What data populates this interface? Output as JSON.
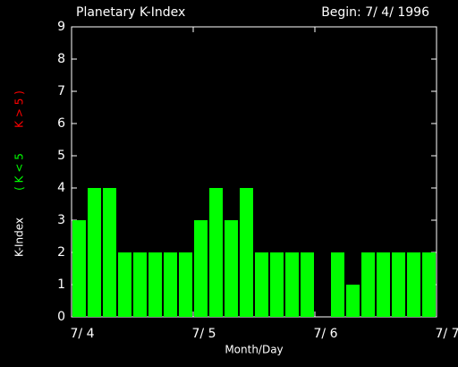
{
  "chart_data": {
    "type": "bar",
    "title": "Planetary K-Index",
    "subtitle": "Begin: 7/ 4/ 1996",
    "xlabel": "Month/Day",
    "ylabel": "K-Index",
    "legend": [
      {
        "label": "( K < 5",
        "color": "#00ff00"
      },
      {
        "label": "K > 5 )",
        "color": "#ff0000"
      }
    ],
    "categories": [
      null,
      null,
      null,
      null,
      null,
      null,
      null,
      null,
      null,
      null,
      null,
      null,
      null,
      null,
      null,
      null,
      null,
      null,
      null,
      null,
      null,
      null,
      null,
      null
    ],
    "values": [
      3,
      4,
      4,
      2,
      2,
      2,
      2,
      2,
      3,
      4,
      3,
      4,
      2,
      2,
      2,
      2,
      0,
      2,
      1,
      2,
      2,
      2,
      2,
      2
    ],
    "color": "#00ff00",
    "xlim": [
      0,
      24
    ],
    "xticks": [
      {
        "value": 0,
        "label": "7/ 4"
      },
      {
        "value": 8,
        "label": "7/ 5"
      },
      {
        "value": 16,
        "label": "7/ 6"
      },
      {
        "value": 24,
        "label": "7/ 7"
      }
    ],
    "ylim": [
      0,
      9
    ],
    "yticks": [
      0,
      1,
      2,
      3,
      4,
      5,
      6,
      7,
      8,
      9
    ]
  }
}
